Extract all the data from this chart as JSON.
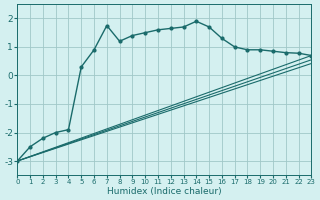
{
  "xlabel": "Humidex (Indice chaleur)",
  "background_color": "#d4f0f0",
  "grid_color": "#a0c8c8",
  "line_color": "#1a6b6b",
  "xlim": [
    0,
    23
  ],
  "ylim": [
    -3.5,
    2.5
  ],
  "xticks": [
    0,
    1,
    2,
    3,
    4,
    5,
    6,
    7,
    8,
    9,
    10,
    11,
    12,
    13,
    14,
    15,
    16,
    17,
    18,
    19,
    20,
    21,
    22,
    23
  ],
  "yticks": [
    -3,
    -2,
    -1,
    0,
    1,
    2
  ],
  "curve1_x": [
    0,
    1,
    2,
    3,
    4,
    5,
    6,
    7,
    8,
    9,
    10,
    11,
    12,
    13,
    14,
    15,
    16,
    17,
    18,
    19,
    20,
    21,
    22,
    23
  ],
  "curve1_y": [
    -3.0,
    -2.5,
    -2.2,
    -2.0,
    -1.9,
    0.3,
    0.9,
    1.75,
    1.2,
    1.4,
    1.5,
    1.6,
    1.65,
    1.7,
    1.9,
    1.7,
    1.3,
    1.0,
    0.9,
    0.9,
    0.85,
    0.8,
    0.78,
    0.7
  ],
  "curve2_x": [
    0,
    23
  ],
  "curve2_y": [
    -3.0,
    0.7
  ],
  "curve3_x": [
    0,
    23
  ],
  "curve3_y": [
    -3.0,
    0.55
  ],
  "curve4_x": [
    0,
    23
  ],
  "curve4_y": [
    -3.0,
    0.42
  ]
}
